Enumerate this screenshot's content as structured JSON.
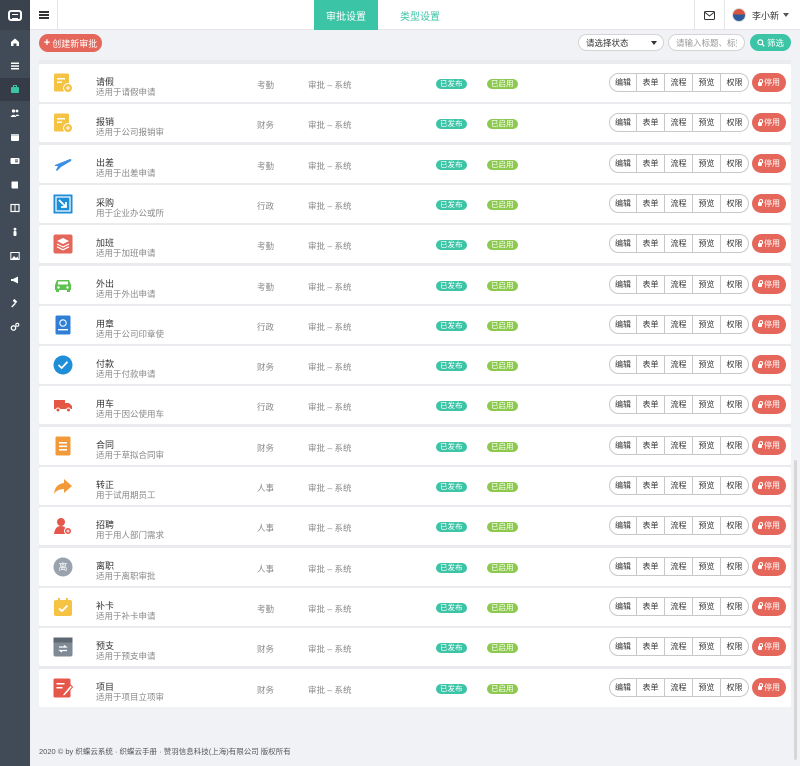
{
  "sidebar": {
    "logo_icon": "app-logo",
    "items": [
      {
        "icon": "home-icon"
      },
      {
        "icon": "list-icon"
      },
      {
        "icon": "briefcase-icon"
      },
      {
        "icon": "users-icon"
      },
      {
        "icon": "calendar-icon"
      },
      {
        "icon": "id-card-icon"
      },
      {
        "icon": "book-icon"
      },
      {
        "icon": "columns-icon"
      },
      {
        "icon": "person-icon"
      },
      {
        "icon": "image-icon"
      },
      {
        "icon": "bullhorn-icon"
      },
      {
        "icon": "gavel-icon"
      },
      {
        "icon": "cogs-icon"
      }
    ],
    "active_index": 2
  },
  "header": {
    "tabs": [
      {
        "label": "审批设置",
        "active": true
      },
      {
        "label": "类型设置",
        "active": false
      }
    ],
    "user_name": "李小新"
  },
  "toolbar": {
    "create_label": "创建新审批",
    "status_select": "请选择状态",
    "search_placeholder": "请输入标题、标签",
    "filter_label": "筛选"
  },
  "actions": [
    "编辑",
    "表单",
    "流程",
    "预览",
    "权限"
  ],
  "stop_label": "停用",
  "rows": [
    {
      "name": "请假",
      "desc": "适用于请假申请",
      "category": "考勤",
      "system": "审批 – 系统",
      "status": "已发布",
      "state": "已启用",
      "icon": "leave-icon",
      "color": "#f6c243"
    },
    {
      "name": "报销",
      "desc": "适用于公司报销审",
      "category": "财务",
      "system": "审批 – 系统",
      "status": "已发布",
      "state": "已启用",
      "icon": "reimburse-icon",
      "color": "#f6c243"
    },
    {
      "name": "出差",
      "desc": "适用于出差申请",
      "category": "考勤",
      "system": "审批 – 系统",
      "status": "已发布",
      "state": "已启用",
      "icon": "airplane-icon",
      "color": "#3a8ee6"
    },
    {
      "name": "采购",
      "desc": "用于企业办公或所",
      "category": "行政",
      "system": "审批 – 系统",
      "status": "已发布",
      "state": "已启用",
      "icon": "purchase-icon",
      "color": "#1f8ed8"
    },
    {
      "name": "加班",
      "desc": "适用于加班申请",
      "category": "考勤",
      "system": "审批 – 系统",
      "status": "已发布",
      "state": "已启用",
      "icon": "overtime-icon",
      "color": "#e5665a"
    },
    {
      "name": "外出",
      "desc": "适用于外出申请",
      "category": "考勤",
      "system": "审批 – 系统",
      "status": "已发布",
      "state": "已启用",
      "icon": "car-icon",
      "color": "#5cc34f"
    },
    {
      "name": "用章",
      "desc": "适用于公司印章使",
      "category": "行政",
      "system": "审批 – 系统",
      "status": "已发布",
      "state": "已启用",
      "icon": "seal-icon",
      "color": "#2f7fd6"
    },
    {
      "name": "付款",
      "desc": "适用于付款申请",
      "category": "财务",
      "system": "审批 – 系统",
      "status": "已发布",
      "state": "已启用",
      "icon": "payment-check-icon",
      "color": "#1f8ed8"
    },
    {
      "name": "用车",
      "desc": "适用于因公使用车",
      "category": "行政",
      "system": "审批 – 系统",
      "status": "已发布",
      "state": "已启用",
      "icon": "truck-icon",
      "color": "#e55645"
    },
    {
      "name": "合同",
      "desc": "适用于草拟合同审",
      "category": "财务",
      "system": "审批 – 系统",
      "status": "已发布",
      "state": "已启用",
      "icon": "contract-icon",
      "color": "#f29a3a"
    },
    {
      "name": "转正",
      "desc": "用于试用期员工",
      "category": "人事",
      "system": "审批 – 系统",
      "status": "已发布",
      "state": "已启用",
      "icon": "forward-icon",
      "color": "#f29a3a"
    },
    {
      "name": "招聘",
      "desc": "用于用人部门需求",
      "category": "人事",
      "system": "审批 – 系统",
      "status": "已发布",
      "state": "已启用",
      "icon": "recruit-icon",
      "color": "#e5564b"
    },
    {
      "name": "离职",
      "desc": "适用于离职审批",
      "category": "人事",
      "system": "审批 – 系统",
      "status": "已发布",
      "state": "已启用",
      "icon": "resign-icon",
      "color": "#9aa3ad",
      "glyph": "离"
    },
    {
      "name": "补卡",
      "desc": "适用于补卡申请",
      "category": "考勤",
      "system": "审批 – 系统",
      "status": "已发布",
      "state": "已启用",
      "icon": "calendar-check-icon",
      "color": "#f6c243"
    },
    {
      "name": "预支",
      "desc": "适用于预支申请",
      "category": "财务",
      "system": "审批 – 系统",
      "status": "已发布",
      "state": "已启用",
      "icon": "advance-icon",
      "color": "#7f8a96"
    },
    {
      "name": "项目",
      "desc": "适用于项目立项审",
      "category": "财务",
      "system": "审批 – 系统",
      "status": "已发布",
      "state": "已启用",
      "icon": "project-icon",
      "color": "#e5564b"
    }
  ],
  "footer": "2020 © by 织蝶云系统 · 织蝶云手册 · 赞羽信息科技(上海)有限公司 版权所有"
}
